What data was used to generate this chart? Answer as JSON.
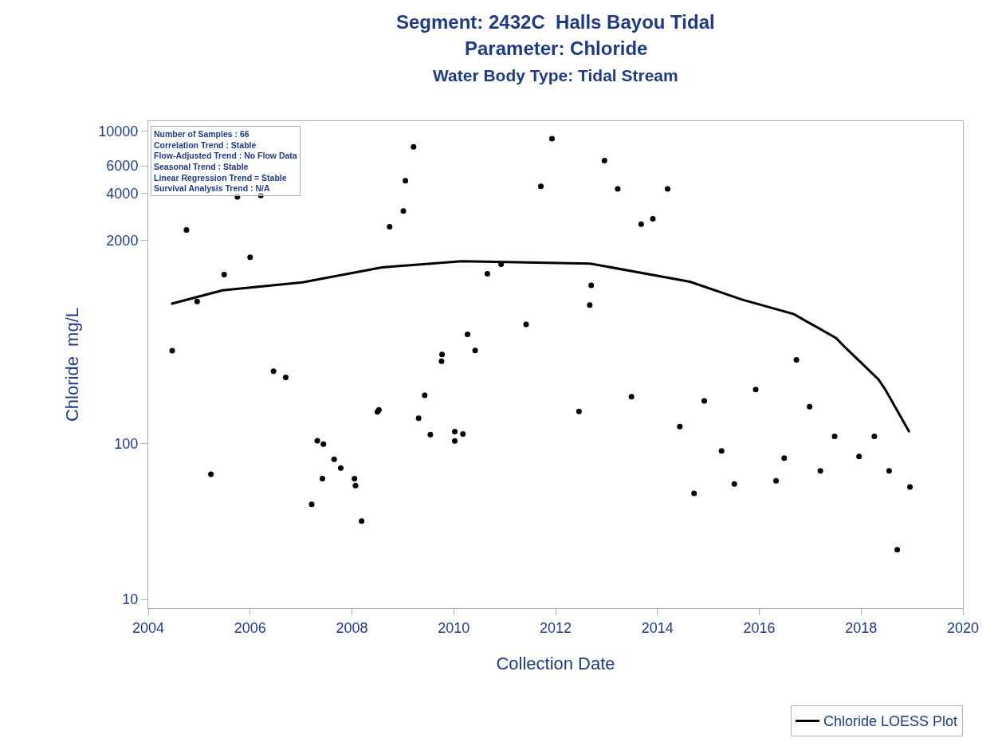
{
  "chart_data": {
    "type": "scatter",
    "title": "Segment: 2432C  Halls Bayou Tidal\nParameter: Chloride",
    "subtitle": "Water Body Type: Tidal Stream",
    "xlabel": "Collection Date",
    "ylabel": "Chloride  mg/L",
    "log": "y",
    "xlim": [
      2004,
      2020
    ],
    "xticks": [
      2004,
      2006,
      2008,
      2010,
      2012,
      2014,
      2016,
      2018,
      2020
    ],
    "ylim": [
      8.8,
      11600
    ],
    "yticks": [
      10,
      100,
      2000,
      4000,
      6000,
      10000
    ],
    "legend": "bottom right",
    "marker": "circle",
    "annotations": [
      "Number of Samples : 66",
      "Correlation Trend : Stable",
      "Flow-Adjusted Trend : No Flow Data",
      "Seasonal Trend : Stable",
      "Linear Regression Trend = Stable",
      "Survival Analysis Trend : N/A"
    ],
    "series": [
      {
        "color": "#000000",
        "x": [
          2004.47,
          2004.75,
          2004.96,
          2005.23,
          2005.49,
          2005.75,
          2006.0,
          2006.21,
          2006.46,
          2006.7,
          2007.21,
          2007.32,
          2007.42,
          2007.44,
          2007.65,
          2007.78,
          2008.05,
          2008.07,
          2008.19,
          2008.5,
          2008.53,
          2008.74,
          2009.01,
          2009.05,
          2009.21,
          2009.31,
          2009.43,
          2009.54,
          2009.76,
          2009.77,
          2010.02,
          2010.02,
          2010.18,
          2010.27,
          2010.42,
          2010.66,
          2010.93,
          2011.42,
          2011.71,
          2011.93,
          2012.46,
          2012.67,
          2012.7,
          2012.96,
          2013.22,
          2013.49,
          2013.68,
          2013.91,
          2014.2,
          2014.44,
          2014.72,
          2014.92,
          2015.26,
          2015.51,
          2015.93,
          2016.33,
          2016.49,
          2016.73,
          2016.99,
          2017.2,
          2017.48,
          2017.96,
          2018.26,
          2018.55,
          2018.71,
          2018.96
        ],
        "values": [
          393,
          2330,
          811,
          63.5,
          1205,
          3800,
          1556,
          3870,
          290,
          265,
          40.7,
          104,
          59.5,
          99,
          79,
          69.5,
          59.5,
          53.6,
          31.8,
          159,
          164,
          2440,
          3080,
          4820,
          7930,
          145,
          203,
          114,
          336,
          371,
          103.5,
          119,
          115,
          500,
          394,
          1219,
          1406,
          579,
          4430,
          8950,
          160,
          770,
          1028,
          6490,
          4270,
          199,
          2535,
          2748,
          4270,
          128,
          47.8,
          187,
          89.5,
          55,
          221,
          57.5,
          80.5,
          343,
          172,
          66.7,
          111,
          82.4,
          111,
          66.7,
          20.8,
          52.6
        ]
      },
      {
        "type": "line",
        "name": "Chloride LOESS Plot",
        "color": "#000000",
        "marker": "none",
        "line_style": "solid",
        "x": [
          2004.45,
          2005.46,
          2007.03,
          2008.59,
          2010.16,
          2012.68,
          2014.64,
          2015.66,
          2016.68,
          2017.51,
          2017.7,
          2018.34,
          2018.48,
          2018.95
        ],
        "values": [
          783,
          957,
          1076,
          1342,
          1468,
          1419,
          1085,
          834,
          673,
          472,
          408,
          257,
          220,
          118
        ]
      }
    ]
  }
}
